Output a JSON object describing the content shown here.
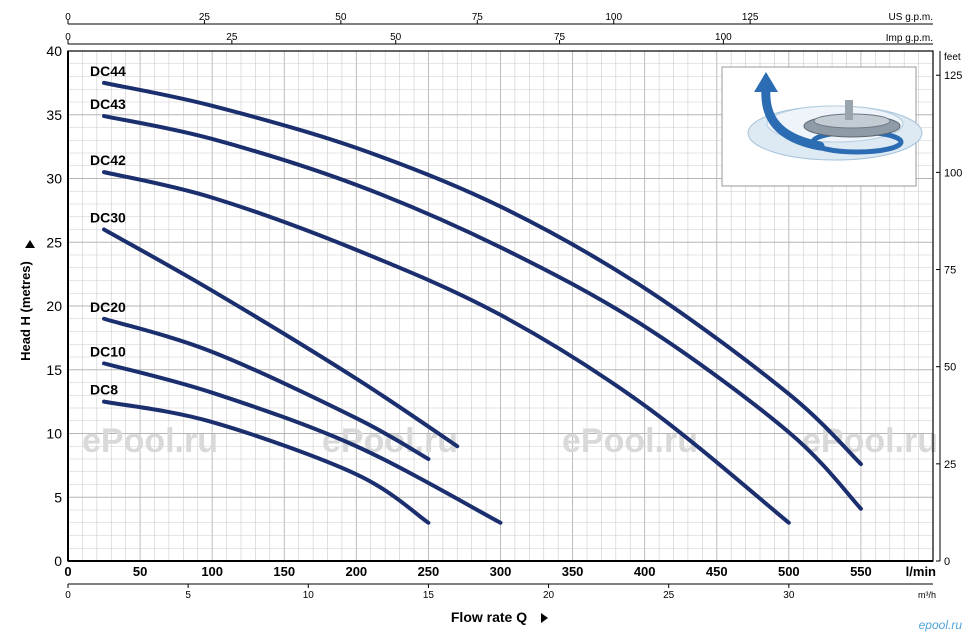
{
  "chart_data": {
    "type": "line",
    "title": "",
    "xlabel": "Flow rate Q",
    "xunit": "l/min",
    "ylabel": "Head H (metres)",
    "xlim": [
      0,
      600
    ],
    "ylim": [
      0,
      40
    ],
    "x_ticks": [
      0,
      50,
      100,
      150,
      200,
      250,
      300,
      350,
      400,
      450,
      500,
      550
    ],
    "y_ticks": [
      0,
      5,
      10,
      15,
      20,
      25,
      30,
      35,
      40
    ],
    "grid": true,
    "secondary_axes": {
      "us_gpm": {
        "label": "US g.p.m.",
        "ticks": [
          0,
          25,
          50,
          75,
          100,
          125
        ]
      },
      "imp_gpm": {
        "label": "Imp g.p.m.",
        "ticks": [
          0,
          25,
          50,
          75,
          100
        ]
      },
      "m3h": {
        "label": "m³/h",
        "ticks": [
          0,
          5,
          10,
          15,
          20,
          25,
          30
        ]
      },
      "feet": {
        "label": "feet",
        "ticks": [
          0,
          25,
          50,
          75,
          100,
          125
        ]
      }
    },
    "series": [
      {
        "name": "DC44",
        "x": [
          25,
          100,
          200,
          300,
          400,
          500,
          550
        ],
        "y": [
          37.5,
          35.7,
          32.4,
          27.8,
          21.4,
          13.1,
          7.6
        ]
      },
      {
        "name": "DC43",
        "x": [
          25,
          100,
          200,
          300,
          400,
          500,
          550
        ],
        "y": [
          34.9,
          33.1,
          29.5,
          24.6,
          18.4,
          10.1,
          4.1
        ]
      },
      {
        "name": "DC42",
        "x": [
          25,
          100,
          200,
          300,
          400,
          500
        ],
        "y": [
          30.5,
          28.5,
          24.4,
          19.3,
          12.2,
          3.0
        ]
      },
      {
        "name": "DC30",
        "x": [
          25,
          100,
          200,
          270
        ],
        "y": [
          26.0,
          21.2,
          14.3,
          9.0
        ]
      },
      {
        "name": "DC20",
        "x": [
          25,
          100,
          200,
          250
        ],
        "y": [
          19.0,
          16.4,
          11.2,
          8.0
        ]
      },
      {
        "name": "DC10",
        "x": [
          25,
          100,
          200,
          300
        ],
        "y": [
          15.5,
          13.2,
          9.0,
          3.0
        ]
      },
      {
        "name": "DC8",
        "x": [
          25,
          100,
          200,
          250
        ],
        "y": [
          12.5,
          10.9,
          6.8,
          3.0
        ]
      }
    ],
    "watermark": "ePool.ru",
    "footer_mark": "epool.ru"
  },
  "colors": {
    "curve": "#1b2f6e",
    "grid": "#cccccc",
    "axis": "#000000",
    "watermark": "#d9d9d9",
    "illustration_accent": "#2b6cb3"
  },
  "icons": [
    "impeller-illustration-icon",
    "arrow-right-icon",
    "arrow-up-icon"
  ]
}
